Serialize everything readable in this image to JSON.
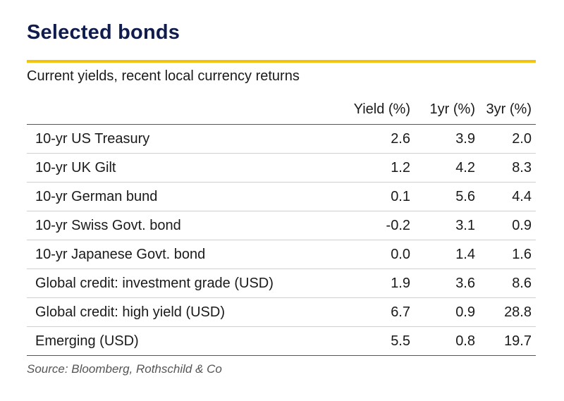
{
  "title": "Selected bonds",
  "subtitle": "Current yields, recent local currency returns",
  "colors": {
    "title": "#0f1c4d",
    "accent_rule": "#f2c40f"
  },
  "table": {
    "headers": [
      "",
      "Yield (%)",
      "1yr (%)",
      "3yr (%)"
    ],
    "rows": [
      {
        "label": "10-yr US Treasury",
        "yield": "2.6",
        "yr1": "3.9",
        "yr3": "2.0"
      },
      {
        "label": "10-yr UK Gilt",
        "yield": "1.2",
        "yr1": "4.2",
        "yr3": "8.3"
      },
      {
        "label": "10-yr German bund",
        "yield": "0.1",
        "yr1": "5.6",
        "yr3": "4.4"
      },
      {
        "label": "10-yr Swiss Govt. bond",
        "yield": "-0.2",
        "yr1": "3.1",
        "yr3": "0.9"
      },
      {
        "label": "10-yr Japanese Govt. bond",
        "yield": "0.0",
        "yr1": "1.4",
        "yr3": "1.6"
      },
      {
        "label": "Global credit: investment grade (USD)",
        "yield": "1.9",
        "yr1": "3.6",
        "yr3": "8.6"
      },
      {
        "label": "Global credit: high yield (USD)",
        "yield": "6.7",
        "yr1": "0.9",
        "yr3": "28.8"
      },
      {
        "label": "Emerging (USD)",
        "yield": "5.5",
        "yr1": "0.8",
        "yr3": "19.7"
      }
    ]
  },
  "source": "Source: Bloomberg, Rothschild & Co"
}
